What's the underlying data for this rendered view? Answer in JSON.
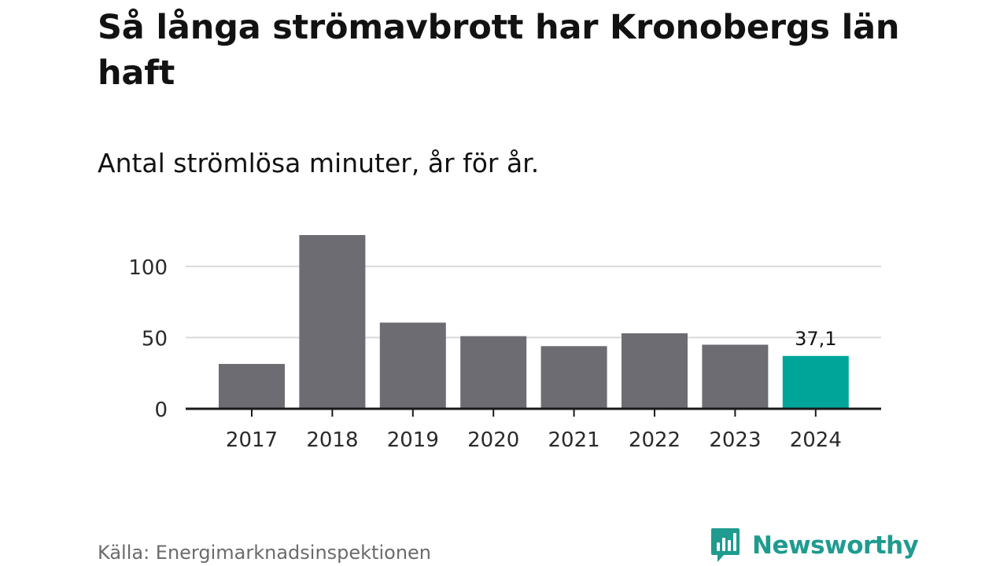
{
  "title": "Så långa strömavbrott har Kronobergs län haft",
  "subtitle": "Antal strömlösa minuter, år för år.",
  "source": "Källa: Energimarknadsinspektionen",
  "brand": {
    "name": "Newsworthy",
    "icon": "newsworthy-logo-icon",
    "color": "#1f9b8f"
  },
  "chart_data": {
    "type": "bar",
    "title": "Så långa strömavbrott har Kronobergs län haft",
    "subtitle": "Antal strömlösa minuter, år för år.",
    "xlabel": "",
    "ylabel": "",
    "categories": [
      "2017",
      "2018",
      "2019",
      "2020",
      "2021",
      "2022",
      "2023",
      "2024"
    ],
    "values": [
      31.5,
      122,
      60.5,
      51,
      44,
      53,
      45,
      37.1
    ],
    "highlight_index": 7,
    "annotations": [
      {
        "category": "2024",
        "text": "37,1"
      }
    ],
    "ylim": [
      0,
      122
    ],
    "yticks": [
      0,
      50,
      100
    ],
    "ytick_labels": [
      "0",
      "50",
      "100"
    ],
    "grid": true,
    "colors": {
      "bar": "#6d6c72",
      "highlight": "#00a59a",
      "grid": "#d9d9d9",
      "axis": "#1a1a1a"
    }
  }
}
